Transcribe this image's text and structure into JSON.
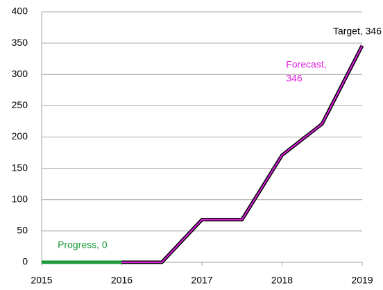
{
  "chart_data": {
    "type": "line",
    "x": [
      2015,
      2016,
      2016.5,
      2017,
      2017.5,
      2018,
      2018.5,
      2019
    ],
    "series": [
      {
        "name": "Forecast",
        "color": "#e020e0",
        "outline": "#000000",
        "x": [
          2015,
          2016,
          2016.5,
          2017,
          2017.5,
          2018,
          2018.5,
          2019
        ],
        "values": [
          0,
          0,
          0,
          68,
          68,
          171,
          221,
          346
        ]
      },
      {
        "name": "Progress",
        "color": "#1a9a3a",
        "x": [
          2015,
          2016
        ],
        "values": [
          0,
          0
        ]
      }
    ],
    "annotations": [
      {
        "lines": [
          "Target, 346"
        ],
        "color": "#000000",
        "x": 2019,
        "y": 346
      },
      {
        "lines": [
          "Forecast,",
          "346"
        ],
        "color": "#e020e0",
        "x": 2018.05,
        "y": 346
      },
      {
        "lines": [
          "Progress, 0"
        ],
        "color": "#1a9a3a",
        "x": 2015.2,
        "y": 0
      }
    ],
    "xlim": [
      2015,
      2019
    ],
    "xticks": [
      2015,
      2016,
      2017,
      2018,
      2019
    ],
    "ylim": [
      0,
      400
    ],
    "yticks": [
      0,
      50,
      100,
      150,
      200,
      250,
      300,
      350,
      400
    ],
    "grid": true
  }
}
